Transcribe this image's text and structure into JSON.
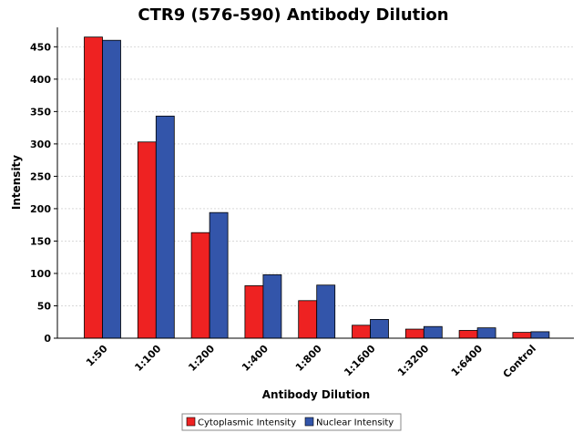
{
  "chart_data": {
    "type": "bar",
    "title": "CTR9 (576-590) Antibody Dilution",
    "xlabel": "Antibody Dilution",
    "ylabel": "Intensity",
    "categories": [
      "1:50",
      "1:100",
      "1:200",
      "1:400",
      "1:800",
      "1:1600",
      "1:3200",
      "1:6400",
      "Control"
    ],
    "series": [
      {
        "name": "Cytoplasmic Intensity",
        "color": "#ee2222",
        "values": [
          465,
          303,
          163,
          81,
          58,
          20,
          14,
          12,
          9
        ]
      },
      {
        "name": "Nuclear Intensity",
        "color": "#3355aa",
        "values": [
          460,
          343,
          194,
          98,
          82,
          29,
          18,
          16,
          10
        ]
      }
    ],
    "ylim": [
      0,
      480
    ],
    "yticks": [
      0,
      50,
      100,
      150,
      200,
      250,
      300,
      350,
      400,
      450
    ],
    "grid": true,
    "legend_position": "bottom-center"
  }
}
